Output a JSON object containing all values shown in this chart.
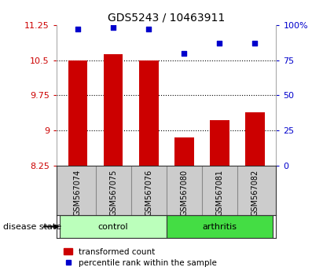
{
  "title": "GDS5243 / 10463911",
  "samples": [
    "GSM567074",
    "GSM567075",
    "GSM567076",
    "GSM567080",
    "GSM567081",
    "GSM567082"
  ],
  "bar_values": [
    10.5,
    10.62,
    10.49,
    8.85,
    9.22,
    9.38
  ],
  "scatter_values": [
    97,
    98,
    97,
    80,
    87,
    87
  ],
  "bar_bottom": 8.25,
  "ylim_left": [
    8.25,
    11.25
  ],
  "ylim_right": [
    0,
    100
  ],
  "yticks_left": [
    8.25,
    9.0,
    9.75,
    10.5,
    11.25
  ],
  "ytick_labels_left": [
    "8.25",
    "9",
    "9.75",
    "10.5",
    "11.25"
  ],
  "yticks_right": [
    0,
    25,
    50,
    75,
    100
  ],
  "ytick_labels_right": [
    "0",
    "25",
    "50",
    "75",
    "100%"
  ],
  "hlines": [
    9.0,
    9.75,
    10.5
  ],
  "bar_color": "#cc0000",
  "scatter_color": "#0000cc",
  "groups": [
    {
      "label": "control",
      "indices": [
        0,
        1,
        2
      ],
      "color": "#bbffbb"
    },
    {
      "label": "arthritis",
      "indices": [
        3,
        4,
        5
      ],
      "color": "#44dd44"
    }
  ],
  "disease_state_label": "disease state",
  "legend_bar_label": "transformed count",
  "legend_scatter_label": "percentile rank within the sample",
  "tick_color_left": "#cc0000",
  "tick_color_right": "#0000cc",
  "sample_box_color": "#cccccc",
  "sample_box_edge": "#888888",
  "group_edge": "#333333",
  "plot_bg_color": "#ffffff"
}
